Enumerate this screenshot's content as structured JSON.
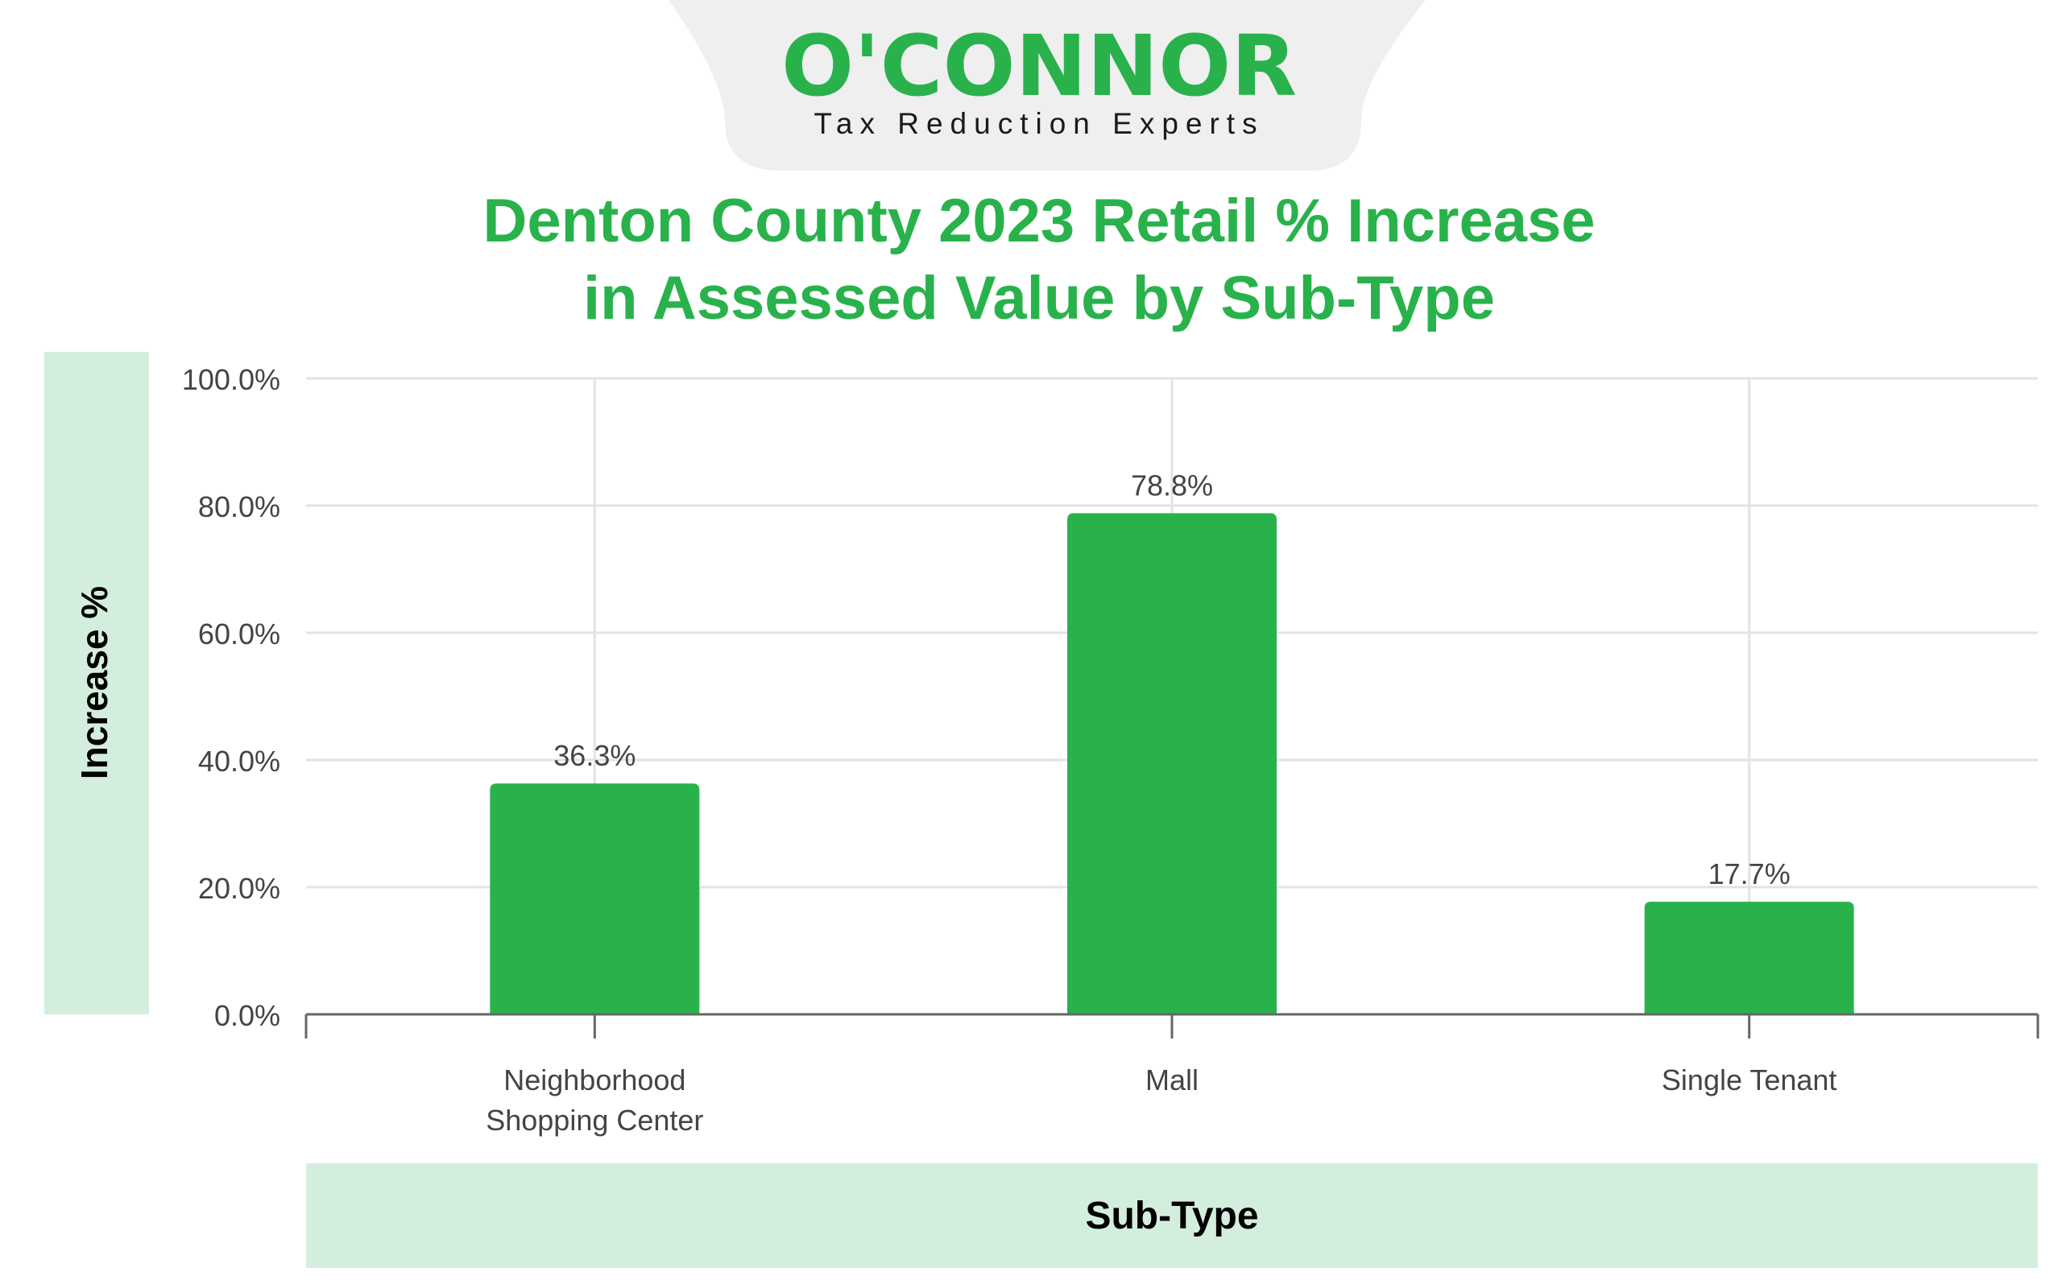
{
  "logo": {
    "name": "O'CONNOR",
    "tagline": "Tax Reduction Experts"
  },
  "colors": {
    "brand": "#29b24c",
    "bar": "#29b24c",
    "axis_band": "#d4eedd",
    "logo_band": "#efefef",
    "grid": "#e3e3e3",
    "axis": "#666666"
  },
  "chart_data": {
    "type": "bar",
    "title": "Denton County 2023 Retail % Increase in Assessed Value by Sub-Type",
    "title_lines": [
      "Denton County 2023 Retail % Increase",
      "in Assessed Value by Sub-Type"
    ],
    "xlabel": "Sub-Type",
    "ylabel": "Increase %",
    "categories": [
      [
        "Neighborhood",
        "Shopping Center"
      ],
      [
        "Mall"
      ],
      [
        "Single Tenant"
      ]
    ],
    "values": [
      36.3,
      78.8,
      17.7
    ],
    "value_labels": [
      "36.3%",
      "78.8%",
      "17.7%"
    ],
    "ylim": [
      0,
      100
    ],
    "yticks": [
      0,
      20,
      40,
      60,
      80,
      100
    ],
    "ytick_labels": [
      "0.0%",
      "20.0%",
      "40.0%",
      "60.0%",
      "80.0%",
      "100.0%"
    ],
    "grid": true,
    "legend": "none"
  }
}
